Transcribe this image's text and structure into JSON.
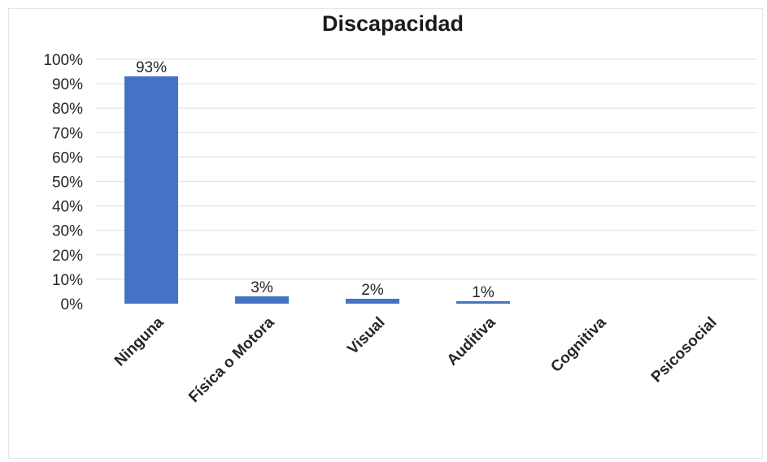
{
  "chart_data": {
    "type": "bar",
    "title": "Discapacidad",
    "categories": [
      "Ninguna",
      "Física o Motora",
      "Visual",
      "Auditiva",
      "Cognitiva",
      "Psicosocial"
    ],
    "series": [
      {
        "values": [
          93,
          3,
          2,
          1,
          0,
          0
        ]
      }
    ],
    "data_labels": [
      "93%",
      "3%",
      "2%",
      "1%",
      "",
      ""
    ],
    "y_tick_labels": [
      "0%",
      "10%",
      "20%",
      "30%",
      "40%",
      "50%",
      "60%",
      "70%",
      "80%",
      "90%",
      "100%"
    ],
    "ylim": [
      0,
      100
    ],
    "xlabel": "",
    "ylabel": "",
    "grid": true,
    "legend": "none",
    "colors": {
      "bar": "#4472C4",
      "grid": "#e3e3e3",
      "text": "#262626"
    }
  }
}
